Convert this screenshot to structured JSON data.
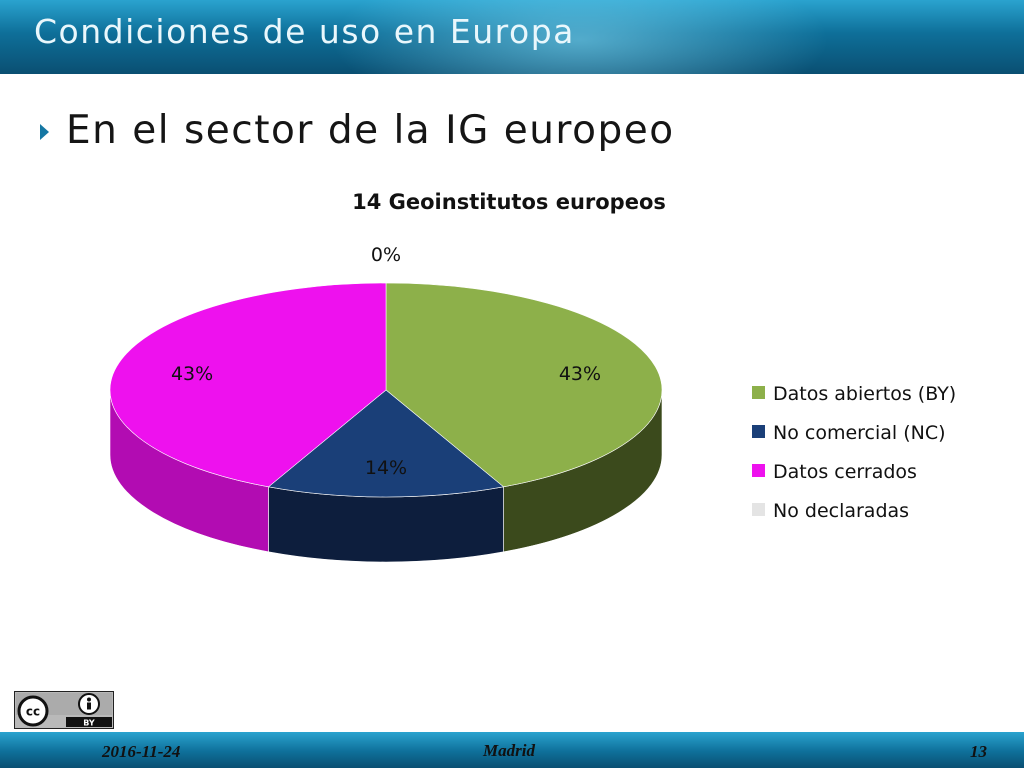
{
  "slide": {
    "title": "Condiciones de uso en Europa",
    "bullet": "En el sector de la IG europeo"
  },
  "chart_data": {
    "type": "pie",
    "title": "14 Geoinstitutos europeos",
    "three_d": true,
    "legend_position": "right",
    "slices": [
      {
        "name": "Datos abiertos (BY)",
        "value": 43,
        "label": "43%",
        "color": "#8db04a",
        "side_color": "#3b4a1c"
      },
      {
        "name": "No comercial (NC)",
        "value": 14,
        "label": "14%",
        "color": "#1a3f78",
        "side_color": "#0d1e3d"
      },
      {
        "name": "Datos cerrados",
        "value": 43,
        "label": "43%",
        "color": "#ee11ee",
        "side_color": "#b20cb2"
      },
      {
        "name": "No declaradas",
        "value": 0,
        "label": "0%",
        "color": "#e4e4e4",
        "side_color": "#bdbdbd"
      }
    ]
  },
  "footer": {
    "date": "2016-11-24",
    "place": "Madrid",
    "page": "13"
  },
  "license_badge": {
    "text": "BY"
  }
}
